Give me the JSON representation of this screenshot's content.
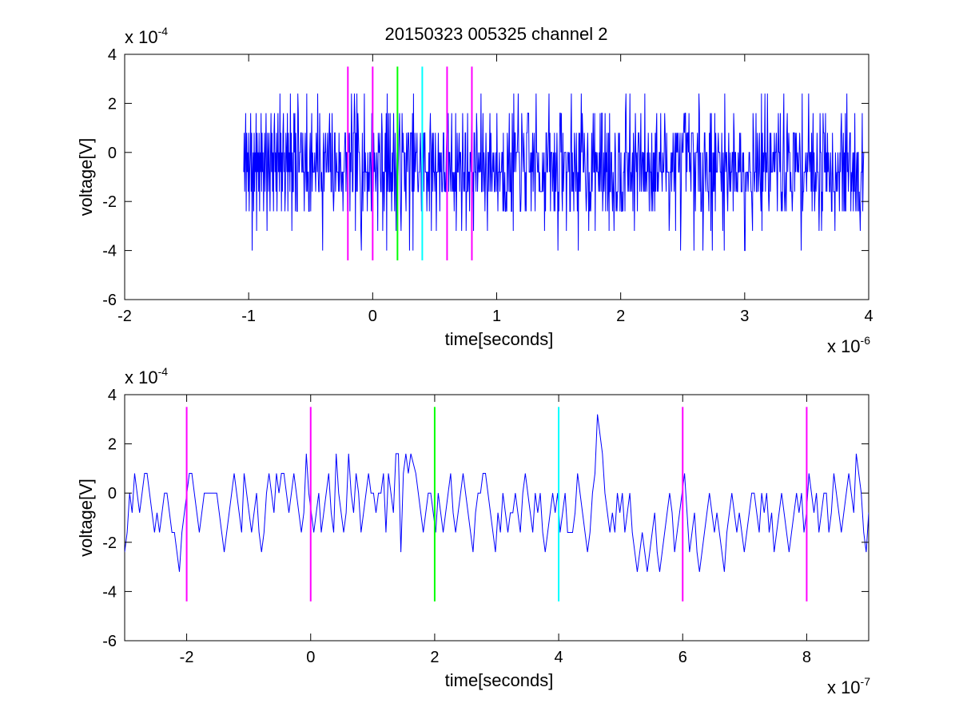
{
  "chart_data": [
    {
      "type": "line",
      "title": "20150323 005325 channel 2",
      "xlabel": "time[seconds]",
      "ylabel": "voltage[V]",
      "xlim": [
        -2e-06,
        4e-06
      ],
      "ylim": [
        -0.0006,
        0.0004
      ],
      "x_ticks": [
        -2e-06,
        -1e-06,
        0,
        1e-06,
        2e-06,
        3e-06,
        4e-06
      ],
      "x_tick_labels": [
        "-2",
        "-1",
        "0",
        "1",
        "2",
        "3",
        "4"
      ],
      "y_ticks": [
        -0.0006,
        -0.0004,
        -0.0002,
        0,
        0.0002,
        0.0004
      ],
      "y_tick_labels": [
        "-6",
        "-4",
        "-2",
        "0",
        "2",
        "4"
      ],
      "x_exponent": {
        "base": "x 10",
        "power": "-6"
      },
      "y_exponent": {
        "base": "x 10",
        "power": "-4"
      },
      "grid": false,
      "series": [
        {
          "color": "#0000ff",
          "x_start": -1.04e-06,
          "x_end": 3.96e-06,
          "sample_count": 1250,
          "seed": 7,
          "values": [
            -8e-05,
            8e-05,
            -0.00016,
            0,
            0.00016,
            -0.00024,
            8e-05,
            -8e-05,
            0,
            -0.00016,
            8e-05,
            -0.00024,
            -8e-05,
            0,
            0.00016,
            -0.00016,
            8e-05,
            -0.0004,
            -8e-05,
            0,
            -0.00024,
            8e-05,
            -0.00016,
            0,
            -8e-05,
            0.00016,
            -0.00032,
            8e-05,
            -8e-05,
            0,
            -0.00016,
            8e-05,
            -0.00024,
            0,
            -8e-05,
            0.00016,
            -0.00016,
            8e-05,
            -8e-05,
            0,
            -0.00024,
            -8e-05,
            8e-05,
            -0.00016,
            0,
            0.00016,
            -8e-05,
            -0.00032,
            8e-05,
            0,
            -0.00016,
            8e-05,
            -8e-05,
            -0.00024,
            0,
            0.00016,
            -8e-05,
            8e-05,
            -0.00016,
            0,
            -0.00024,
            8e-05,
            0.00016,
            -8e-05,
            0,
            -0.00016,
            8e-05,
            -0.00024,
            0,
            0.00016,
            -8e-05,
            0,
            -0.00016,
            0.00024,
            -8e-05,
            8e-05,
            -0.00024,
            0,
            -0.00016,
            8e-05,
            0.00016,
            -8e-05,
            0,
            -0.00024,
            -0.00016,
            8e-05,
            0,
            -8e-05,
            0.00016,
            -0.00024,
            8e-05,
            -8e-05,
            0,
            -0.00016,
            0.00024,
            -8e-05,
            8e-05,
            -0.00032,
            0,
            -0.00016
          ]
        },
        {
          "name": "",
          "color": "#ff00ff",
          "type": "vertical-line",
          "x": -2e-07,
          "y_range": [
            -0.00044,
            0.00035
          ]
        },
        {
          "name": "",
          "color": "#ff00ff",
          "type": "vertical-line",
          "x": 0,
          "y_range": [
            -0.00044,
            0.00035
          ]
        },
        {
          "name": "",
          "color": "#00ff00",
          "type": "vertical-line",
          "x": 2e-07,
          "y_range": [
            -0.00044,
            0.00035
          ]
        },
        {
          "name": "",
          "color": "#00ffff",
          "type": "vertical-line",
          "x": 4e-07,
          "y_range": [
            -0.00044,
            0.00035
          ]
        },
        {
          "name": "",
          "color": "#ff00ff",
          "type": "vertical-line",
          "x": 6e-07,
          "y_range": [
            -0.00044,
            0.00035
          ]
        },
        {
          "name": "",
          "color": "#ff00ff",
          "type": "vertical-line",
          "x": 8e-07,
          "y_range": [
            -0.00044,
            0.00035
          ]
        }
      ]
    },
    {
      "type": "line",
      "title": "",
      "xlabel": "time[seconds]",
      "ylabel": "voltage[V]",
      "xlim": [
        -3e-07,
        9e-07
      ],
      "ylim": [
        -0.0006,
        0.0004
      ],
      "x_ticks": [
        -2e-07,
        0,
        2e-07,
        4e-07,
        6e-07,
        8e-07
      ],
      "x_tick_labels": [
        "-2",
        "0",
        "2",
        "4",
        "6",
        "8"
      ],
      "y_ticks": [
        -0.0006,
        -0.0004,
        -0.0002,
        0,
        0.0002,
        0.0004
      ],
      "y_tick_labels": [
        "-6",
        "-4",
        "-2",
        "0",
        "2",
        "4"
      ],
      "x_exponent": {
        "base": "x 10",
        "power": "-7"
      },
      "y_exponent": {
        "base": "x 10",
        "power": "-4"
      },
      "grid": false,
      "series": [
        {
          "color": "#0000ff",
          "x_start": -3e-07,
          "x_end": 9e-07,
          "sample_count": 300,
          "values": [
            -0.00024,
            -0.00016,
            0,
            -8e-05,
            8e-05,
            0,
            -8e-05,
            0,
            8e-05,
            8e-05,
            0,
            -8e-05,
            -0.00016,
            -8e-05,
            -0.00016,
            -8e-05,
            0,
            0,
            -8e-05,
            -0.00016,
            -0.00016,
            -0.00024,
            -0.00032,
            -0.00016,
            -8e-05,
            0,
            8e-05,
            8e-05,
            0,
            -8e-05,
            -0.00016,
            -8e-05,
            0,
            0,
            0,
            0,
            0,
            0,
            -8e-05,
            -0.00016,
            -0.00024,
            -0.00016,
            -8e-05,
            0,
            8e-05,
            0,
            -8e-05,
            -0.00016,
            8e-05,
            0,
            -8e-05,
            -0.00016,
            -8e-05,
            0,
            -0.00016,
            -0.00024,
            -0.00016,
            0,
            8e-05,
            0,
            -8e-05,
            8e-05,
            0,
            8e-05,
            8e-05,
            0,
            -8e-05,
            0,
            8e-05,
            0,
            -8e-05,
            -0.00016,
            -8e-05,
            0.00016,
            0,
            -8e-05,
            -0.00016,
            -8e-05,
            0,
            -0.00016,
            -8e-05,
            0,
            8e-05,
            -8e-05,
            -0.00016,
            0.00016,
            0,
            -8e-05,
            -0.00016,
            -8e-05,
            0.00016,
            0,
            -8e-05,
            8e-05,
            0,
            -0.00016,
            -8e-05,
            0,
            8e-05,
            0,
            0,
            -8e-05,
            0,
            0,
            8e-05,
            -0.00016,
            8e-05,
            0,
            -8e-05,
            0.00016,
            0.00016,
            -0.00024,
            8e-05,
            0.00016,
            8e-05,
            0.00016,
            0.00012,
            8e-05,
            0,
            -8e-05,
            -0.00016,
            -8e-05,
            0,
            0,
            -8e-05,
            -0.00016,
            0,
            -8e-05,
            -0.00016,
            -8e-05,
            0,
            8e-05,
            -8e-05,
            -0.00016,
            -8e-05,
            0,
            8e-05,
            0,
            -8e-05,
            -0.00016,
            -0.00024,
            -8e-05,
            0,
            0,
            8e-05,
            8e-05,
            0,
            -8e-05,
            -0.00016,
            -0.00024,
            -8e-05,
            -0.00016,
            0,
            -8e-05,
            -0.00016,
            -8e-05,
            -8e-05,
            0,
            -8e-05,
            -0.00016,
            0,
            8e-05,
            0,
            -8e-05,
            -0.00016,
            0,
            -8e-05,
            0,
            -0.00016,
            -0.00024,
            -0.00016,
            -8e-05,
            0,
            -8e-05,
            0,
            -0.00016,
            -8e-05,
            0,
            -0.00016,
            -0.00016,
            -0.00016,
            -8e-05,
            8e-05,
            0,
            -8e-05,
            -0.00016,
            -0.00024,
            -0.00016,
            0,
            8e-05,
            0.00032,
            0.00024,
            0.00016,
            0,
            -8e-05,
            -0.00016,
            -8e-05,
            -0.00016,
            0,
            -8e-05,
            0,
            -0.00016,
            -8e-05,
            0,
            -0.00016,
            -0.00024,
            -0.00032,
            -0.00024,
            -0.00016,
            -0.00024,
            -0.00032,
            -0.00024,
            -0.00016,
            -8e-05,
            -0.00024,
            -0.00032,
            -0.00024,
            -0.00016,
            -8e-05,
            0,
            -8e-05,
            -0.00024,
            -0.00016,
            -8e-05,
            0,
            8e-05,
            -8e-05,
            -0.00024,
            -0.00016,
            -8e-05,
            -0.00024,
            -0.00032,
            -0.00024,
            -0.00016,
            -8e-05,
            0,
            -8e-05,
            -0.00016,
            -8e-05,
            -0.00016,
            -0.00024,
            -0.00032,
            -0.00016,
            -8e-05,
            0,
            -8e-05,
            -0.00016,
            -8e-05,
            -0.00016,
            -0.00024,
            -0.00016,
            -8e-05,
            0,
            0,
            -8e-05,
            -0.00016,
            0,
            -8e-05,
            0,
            -0.00016,
            -8e-05,
            -0.00024,
            -0.00016,
            -8e-05,
            0,
            -8e-05,
            -0.00016,
            -0.00024,
            -0.00016,
            -8e-05,
            0,
            -8e-05,
            0,
            -0.00016,
            -8e-05,
            8e-05,
            0,
            -8e-05,
            0,
            -0.00016,
            -8e-05,
            0,
            0,
            -0.00016,
            -8e-05,
            8e-05,
            0,
            -8e-05,
            -0.00016,
            -8e-05,
            0,
            8e-05,
            0,
            -8e-05,
            0.00016,
            8e-05,
            0,
            -0.00016,
            -0.00024,
            -8e-05
          ]
        },
        {
          "name": "",
          "color": "#ff00ff",
          "type": "vertical-line",
          "x": -2e-07,
          "y_range": [
            -0.00044,
            0.00035
          ]
        },
        {
          "name": "",
          "color": "#ff00ff",
          "type": "vertical-line",
          "x": 0,
          "y_range": [
            -0.00044,
            0.00035
          ]
        },
        {
          "name": "",
          "color": "#00ff00",
          "type": "vertical-line",
          "x": 2e-07,
          "y_range": [
            -0.00044,
            0.00035
          ]
        },
        {
          "name": "",
          "color": "#00ffff",
          "type": "vertical-line",
          "x": 4e-07,
          "y_range": [
            -0.00044,
            0.00035
          ]
        },
        {
          "name": "",
          "color": "#ff00ff",
          "type": "vertical-line",
          "x": 6e-07,
          "y_range": [
            -0.00044,
            0.00035
          ]
        },
        {
          "name": "",
          "color": "#ff00ff",
          "type": "vertical-line",
          "x": 8e-07,
          "y_range": [
            -0.00044,
            0.00035
          ]
        }
      ]
    }
  ]
}
